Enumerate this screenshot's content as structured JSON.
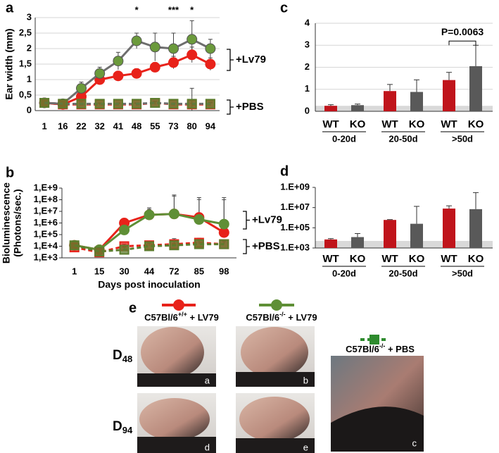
{
  "chart_data": [
    {
      "type": "line",
      "panel": "a",
      "ylabel": "Ear width (mm)",
      "categories": [
        "1",
        "16",
        "22",
        "32",
        "41",
        "48",
        "55",
        "73",
        "80",
        "94"
      ],
      "ylim": [
        0,
        3
      ],
      "yticks": [
        0,
        {
          "value": 0.5,
          "label": "0,5"
        },
        1,
        {
          "value": 1.5,
          "label": "1,5"
        },
        2,
        {
          "value": 2.5,
          "label": "2,5"
        },
        3
      ],
      "grid": true,
      "log_scale": false,
      "series": [
        {
          "color": "#e8221a",
          "line_color": "#e8221a",
          "marker": "circle",
          "dashed": false,
          "values": [
            0.25,
            0.2,
            0.45,
            1.0,
            1.12,
            1.2,
            1.4,
            1.55,
            1.8,
            1.5
          ],
          "errors": [
            0.05,
            0.05,
            0.1,
            0.1,
            0.12,
            0.15,
            0.15,
            0.2,
            0.25,
            0.2
          ]
        },
        {
          "color": "#6b9a3c",
          "line_color": "#6e6e6e",
          "marker": "circle",
          "dashed": false,
          "values": [
            0.25,
            0.22,
            0.72,
            1.2,
            1.6,
            2.25,
            2.05,
            2.0,
            2.3,
            2.0
          ],
          "errors": [
            0.05,
            0.05,
            0.2,
            0.2,
            0.28,
            0.25,
            0.45,
            0.5,
            0.6,
            0.3
          ]
        },
        {
          "color": "#e8221a",
          "line_color": "#e8221a",
          "marker": "square",
          "dashed": true,
          "values": [
            0.25,
            0.2,
            0.2,
            0.2,
            0.2,
            0.2,
            0.25,
            0.2,
            0.2,
            0.2
          ],
          "errors": [
            0.03,
            0.03,
            0.03,
            0.03,
            0.03,
            0.03,
            0.05,
            0.03,
            0.03,
            0.05
          ]
        },
        {
          "color": "#5d7d2e",
          "line_color": "#6e6e6e",
          "marker": "square",
          "dashed": true,
          "values": [
            0.25,
            0.22,
            0.22,
            0.22,
            0.22,
            0.22,
            0.25,
            0.22,
            0.22,
            0.22
          ],
          "errors": [
            0.03,
            0.03,
            0.03,
            0.03,
            0.03,
            0.03,
            0.05,
            0.03,
            0.5,
            0.05
          ]
        }
      ],
      "significance_labels": [
        "*",
        "***",
        "*"
      ],
      "bracket_labels": [
        "+Lv79",
        "+PBS"
      ]
    },
    {
      "type": "line",
      "panel": "b",
      "ylabel": [
        "Bioluminescence",
        "(Photons/sec.)"
      ],
      "xlabel": "Days post inoculation",
      "categories": [
        "1",
        "15",
        "30",
        "44",
        "72",
        "85",
        "98"
      ],
      "ylim": [
        1000,
        1000000000
      ],
      "yticks": [
        {
          "value": 1000,
          "label": "1,E+3"
        },
        {
          "value": 10000,
          "label": "1,E+4"
        },
        {
          "value": 100000,
          "label": "1,E+5"
        },
        {
          "value": 1000000,
          "label": "1,E+6"
        },
        {
          "value": 10000000,
          "label": "1,E+7"
        },
        {
          "value": 100000000,
          "label": "1,E+8"
        },
        {
          "value": 1000000000,
          "label": "1,E+9"
        }
      ],
      "grid": false,
      "log_scale": true,
      "series": [
        {
          "color": "#e8221a",
          "line_color": "#e8221a",
          "marker": "circle",
          "dashed": false,
          "values": [
            12000,
            5000,
            1000000,
            5000000,
            6000000,
            3000000,
            150000
          ],
          "errors": [
            3000,
            1000,
            1000000,
            10000000,
            200000000,
            100000000,
            100000000
          ]
        },
        {
          "color": "#5f8f36",
          "line_color": "#5f8f36",
          "marker": "circle",
          "dashed": false,
          "values": [
            12000,
            5000,
            250000,
            5000000,
            6000000,
            2000000,
            800000
          ],
          "errors": [
            3000,
            1000,
            200000,
            15000000,
            250000000,
            150000000,
            150000000
          ]
        },
        {
          "color": "#e8221a",
          "line_color": "#e8221a",
          "marker": "square",
          "dashed": true,
          "values": [
            8000,
            3000,
            10000,
            12000,
            15000,
            20000,
            15000
          ],
          "errors": [
            2000,
            1000,
            5000,
            10000,
            30000,
            30000,
            15000
          ]
        },
        {
          "color": "#5d7d2e",
          "line_color": "#5d7d2e",
          "marker": "square",
          "dashed": true,
          "values": [
            12000,
            3500,
            5000,
            10000,
            12000,
            15000,
            15000
          ],
          "errors": [
            3000,
            1000,
            3000,
            8000,
            20000,
            20000,
            10000
          ]
        }
      ],
      "bracket_labels": [
        "+Lv79",
        "+PBS"
      ]
    },
    {
      "type": "bar",
      "panel": "c",
      "categories": [
        "0-20d",
        "20-50d",
        ">50d"
      ],
      "ylim": [
        0,
        4
      ],
      "yticks": [
        0,
        1,
        2,
        3,
        4
      ],
      "grid": true,
      "log_scale": false,
      "shaded_band_max": 0.25,
      "series": [
        {
          "name": "WT",
          "color": "#c0141b",
          "values": [
            0.25,
            0.92,
            1.42
          ],
          "errors": [
            0.05,
            0.3,
            0.35
          ]
        },
        {
          "name": "KO",
          "color": "#595959",
          "values": [
            0.28,
            0.88,
            2.05
          ],
          "errors": [
            0.05,
            0.55,
            0.95
          ]
        }
      ],
      "annotation": "P=0.0063"
    },
    {
      "type": "bar",
      "panel": "d",
      "categories": [
        "0-20d",
        "20-50d",
        ">50d"
      ],
      "ylim": [
        1000,
        1000000000
      ],
      "yticks": [
        {
          "value": 1000,
          "label": "1.E+03"
        },
        {
          "value": 100000,
          "label": "1.E+05"
        },
        {
          "value": 10000000,
          "label": "1.E+07"
        },
        {
          "value": 1000000000,
          "label": "1.E+09"
        }
      ],
      "grid": false,
      "log_scale": true,
      "shaded_band_max": 5000,
      "series": [
        {
          "name": "WT",
          "color": "#c0141b",
          "values": [
            7000,
            600000,
            8000000
          ],
          "errors": [
            1500,
            50000,
            7000000
          ]
        },
        {
          "name": "KO",
          "color": "#595959",
          "values": [
            12000,
            250000,
            7000000
          ],
          "errors": [
            15000,
            13000000,
            300000000
          ]
        }
      ]
    }
  ],
  "panel_e": {
    "panel": "e",
    "legend": [
      {
        "base": "C57Bl/6",
        "sup": "+/+",
        "rest": " + LV79"
      },
      {
        "base": "C57Bl/6",
        "sup": "-/-",
        "rest": " + LV79"
      },
      {
        "base": "C57Bl/6",
        "sup": "-/-",
        "rest": " + PBS"
      }
    ],
    "rows": [
      {
        "base": "D",
        "sub": "48"
      },
      {
        "base": "D",
        "sub": "94"
      }
    ],
    "photo_labels": [
      "a",
      "b",
      "c",
      "d",
      "e"
    ]
  }
}
